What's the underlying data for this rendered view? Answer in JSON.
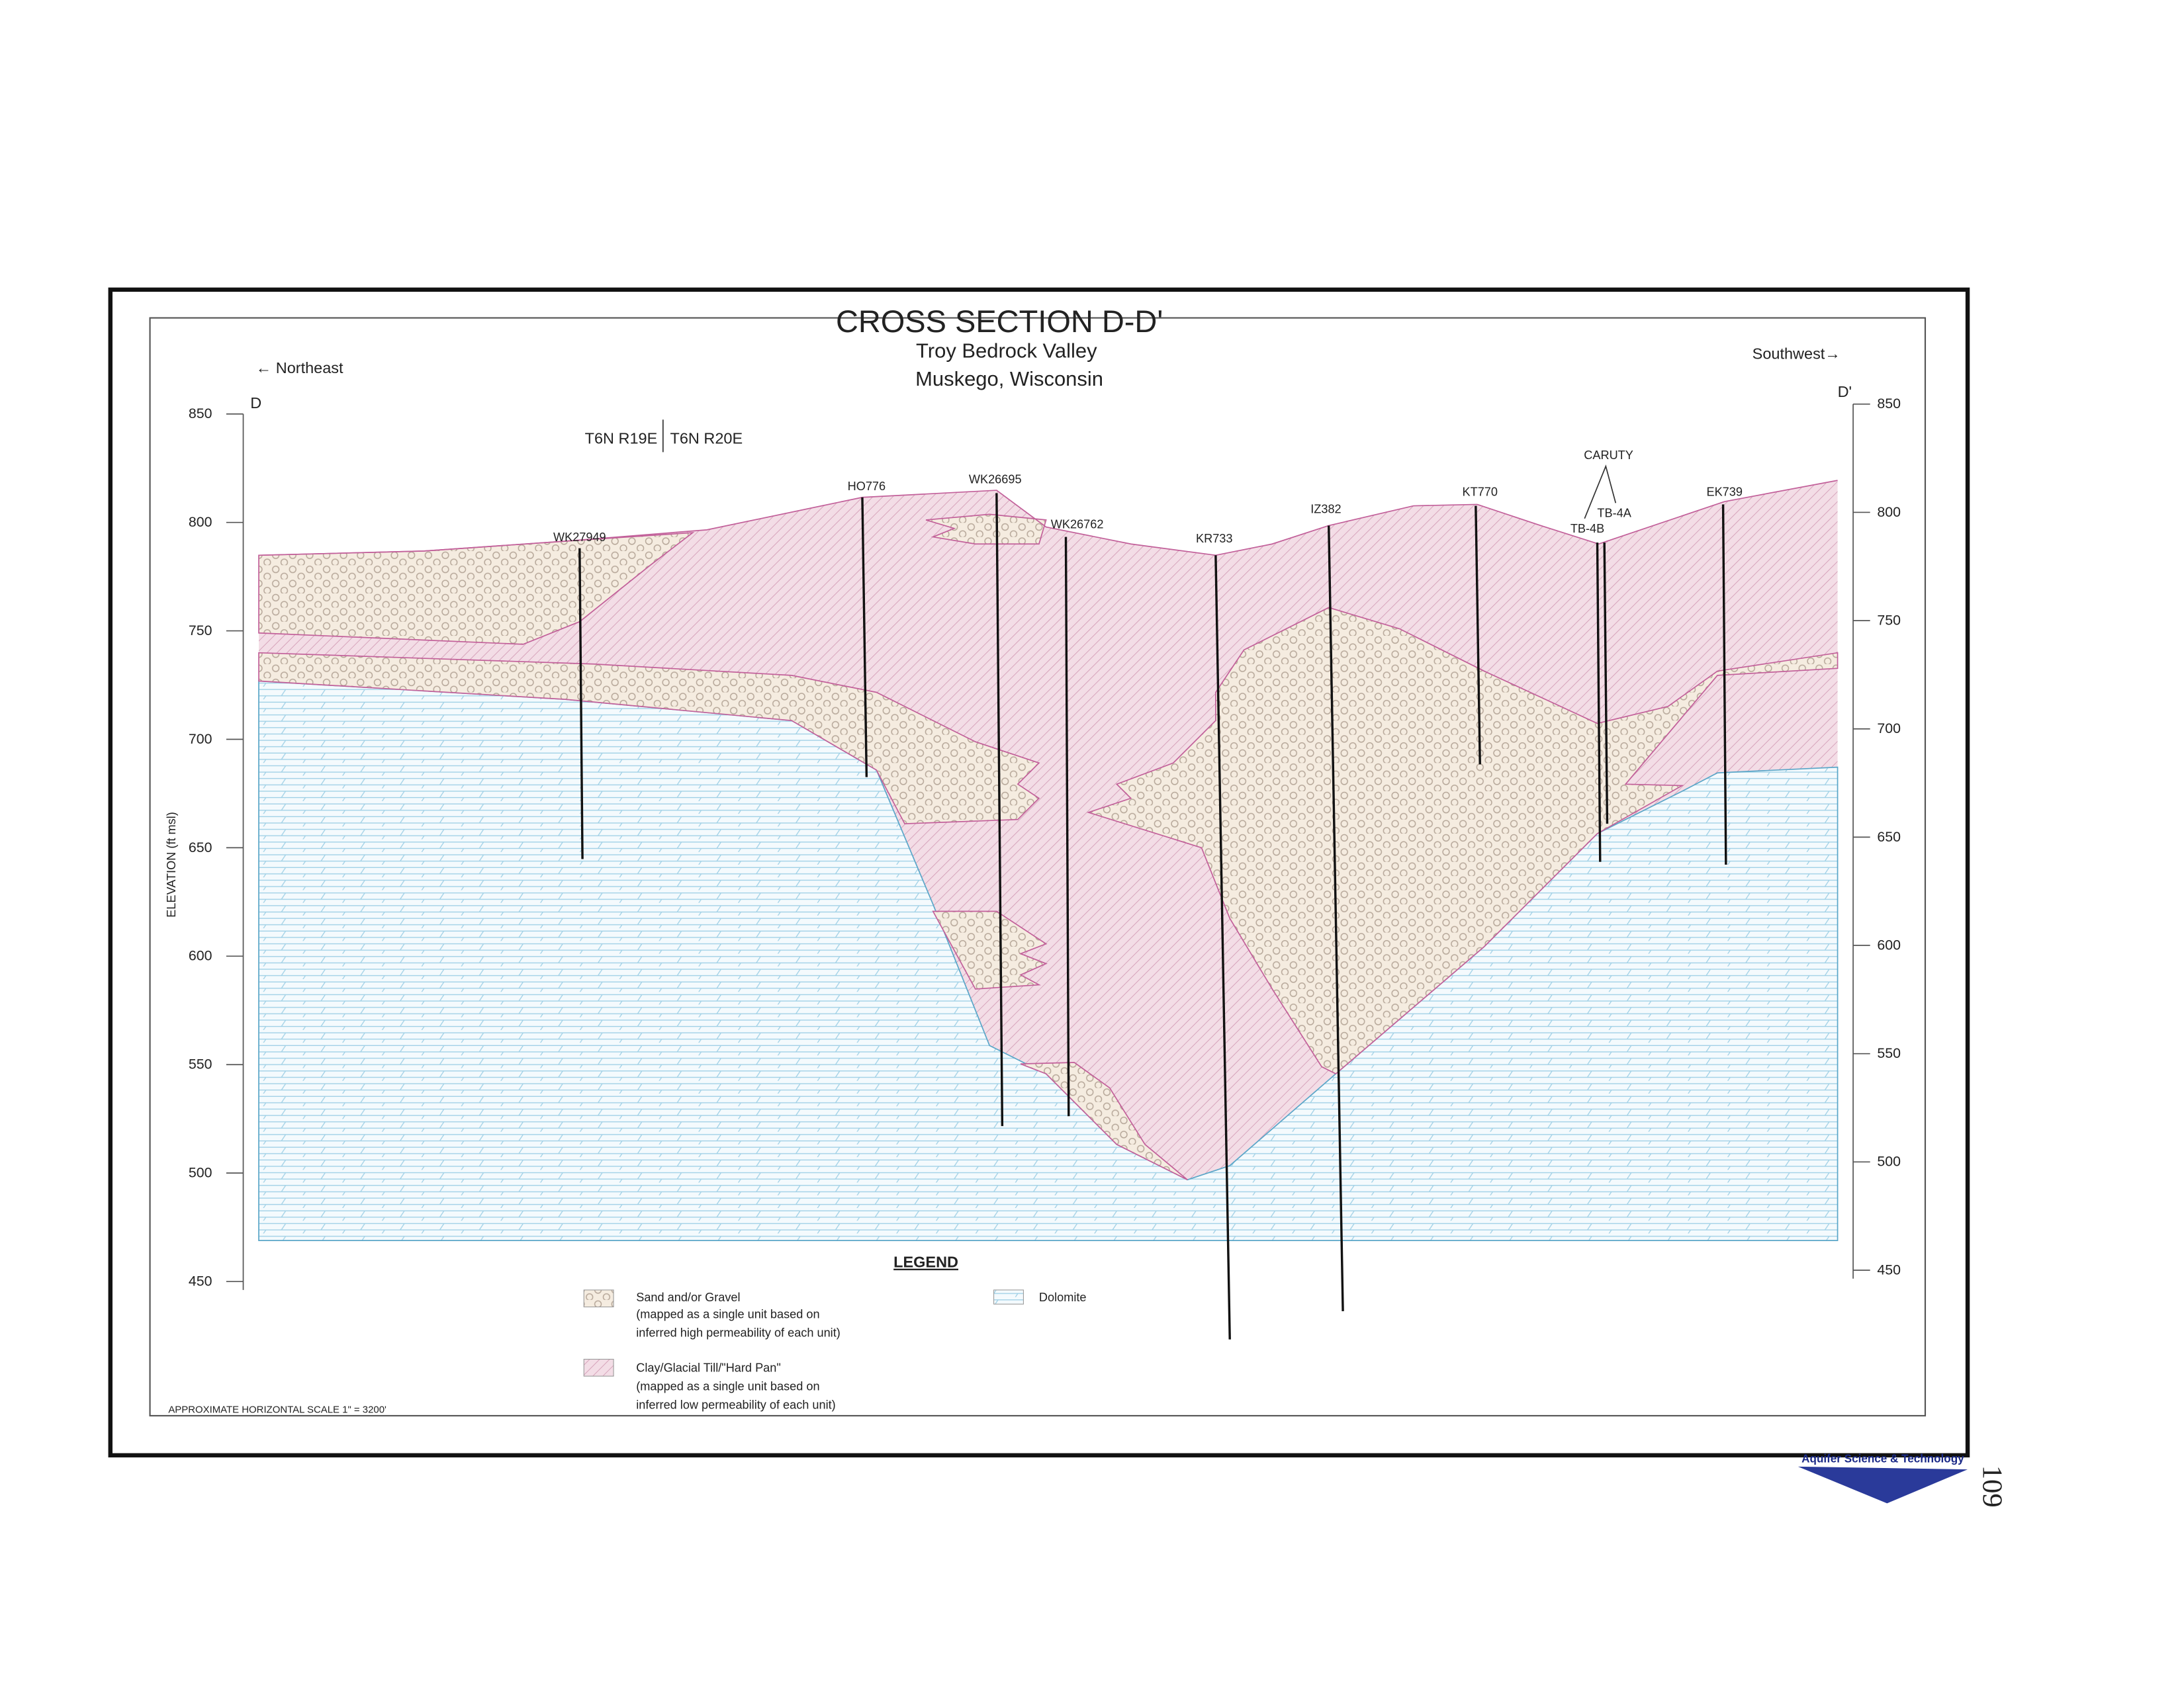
{
  "title": "CROSS SECTION D-D'",
  "subtitle": [
    "Troy Bedrock Valley",
    "Muskego, Wisconsin"
  ],
  "directions": {
    "left": "← Northeast",
    "right": "Southwest→"
  },
  "section_ends": [
    "D",
    "D'"
  ],
  "axis": {
    "label": "ELEVATION (ft msl)",
    "left_ticks": [
      850,
      800,
      750,
      700,
      650,
      600,
      550,
      500,
      450
    ],
    "right_ticks": [
      850,
      800,
      750,
      700,
      650,
      600,
      550,
      500,
      450
    ]
  },
  "township": [
    "T6N R19E",
    "T6N R20E"
  ],
  "wells": [
    "WK27949",
    "HO776",
    "WK26695",
    "WK26762",
    "KR733",
    "IZ382",
    "KT770",
    "TB-4B",
    "TB-4A",
    "EK739"
  ],
  "well_group": "CARUTY",
  "legend": {
    "title": "LEGEND",
    "items": [
      {
        "label": "Sand and/or Gravel",
        "note": [
          "(mapped as a single unit based on",
          "inferred high permeability of each unit)"
        ]
      },
      {
        "label": "Clay/Glacial Till/\"Hard Pan\"",
        "note": [
          "(mapped as a single unit based on",
          "inferred low permeability of each unit)"
        ]
      },
      {
        "label": "Dolomite",
        "note": []
      }
    ]
  },
  "scale_note": "APPROXIMATE HORIZONTAL SCALE 1\" = 3200'",
  "logo": "Aquifer Science & Technology",
  "page_number": "109"
}
